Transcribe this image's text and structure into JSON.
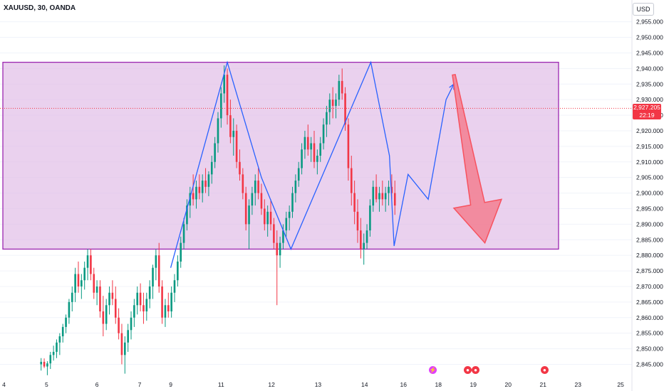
{
  "header": {
    "symbol_title": "XAUUSD, 30, OANDA",
    "currency": "USD"
  },
  "price_tag": {
    "price": "2,927.205",
    "countdown": "22:19",
    "color": "#f23645"
  },
  "colors": {
    "up": "#089981",
    "down": "#f23645",
    "zone_fill": "#e1bee7",
    "zone_border": "#9c27b0",
    "pattern": "#2962ff",
    "arrow": "#f7525f"
  },
  "events": [
    {
      "name": "flash-event-icon",
      "glyph": "⚡",
      "color": "#e040fb",
      "date_index": 55.8
    },
    {
      "name": "us-flag-event-icon",
      "glyph": "●",
      "color": "#f23645",
      "date_index": 60.3
    },
    {
      "name": "us-flag-event-icon",
      "glyph": "●",
      "color": "#f23645",
      "date_index": 61.3
    },
    {
      "name": "us-flag-event-icon",
      "glyph": "●",
      "color": "#f23645",
      "date_index": 70.2
    }
  ],
  "chart_data": {
    "type": "candlestick",
    "title": "XAUUSD, 30, OANDA",
    "ylabel": "USD",
    "ylim": [
      2841,
      2962
    ],
    "y_ticks": [
      "2,845.000",
      "2,850.000",
      "2,855.000",
      "2,860.000",
      "2,865.000",
      "2,870.000",
      "2,875.000",
      "2,880.000",
      "2,885.000",
      "2,890.000",
      "2,895.000",
      "2,900.000",
      "2,905.000",
      "2,910.000",
      "2,915.000",
      "2,920.000",
      "2,925.000",
      "2,930.000",
      "2,935.000",
      "2,940.000",
      "2,945.000",
      "2,950.000",
      "2,955.000"
    ],
    "y_tick_values": [
      2845,
      2850,
      2855,
      2860,
      2865,
      2870,
      2875,
      2880,
      2885,
      2890,
      2895,
      2900,
      2905,
      2910,
      2915,
      2920,
      2925,
      2930,
      2935,
      2940,
      2945,
      2950,
      2955
    ],
    "x_ticks": [
      "4",
      "5",
      "6",
      "7",
      "9",
      "11",
      "12",
      "13",
      "14",
      "16",
      "18",
      "19",
      "20",
      "21",
      "23",
      "25"
    ],
    "x_tick_index": [
      0.5,
      6,
      12.5,
      18,
      22,
      28.5,
      35,
      41,
      47,
      52,
      56.5,
      61,
      65.5,
      70,
      74.5,
      80
    ],
    "x_domain": [
      0,
      81
    ],
    "last_price": 2927.205,
    "zone": {
      "from_index": -1,
      "to_index": 72,
      "top": 2942,
      "bottom": 2882
    },
    "pattern_line": [
      [
        22,
        2876
      ],
      [
        29.3,
        2942
      ],
      [
        33.7,
        2905
      ],
      [
        37.5,
        2882
      ],
      [
        47.8,
        2942
      ],
      [
        50.2,
        2912
      ],
      [
        50.8,
        2883
      ],
      [
        52.6,
        2906
      ],
      [
        55.2,
        2898
      ],
      [
        57.5,
        2930
      ],
      [
        58.5,
        2935
      ]
    ],
    "projection_arrow": {
      "start": [
        58.5,
        2938
      ],
      "end": [
        62.5,
        2884
      ]
    },
    "candles": [
      [
        5.3,
        2845.0,
        2847.0,
        2843.0,
        2845.8
      ],
      [
        5.7,
        2845.8,
        2846.9,
        2843.8,
        2844.3
      ],
      [
        6.1,
        2844.3,
        2846.0,
        2841.5,
        2845.3
      ],
      [
        6.5,
        2845.3,
        2849.0,
        2843.5,
        2848.0
      ],
      [
        6.9,
        2848.0,
        2851.0,
        2846.2,
        2849.0
      ],
      [
        7.3,
        2849.0,
        2853.0,
        2847.0,
        2852.0
      ],
      [
        7.7,
        2852.0,
        2855.0,
        2848.0,
        2854.0
      ],
      [
        8.1,
        2854.0,
        2858.0,
        2852.0,
        2857.0
      ],
      [
        8.5,
        2857.0,
        2861.0,
        2855.0,
        2860.0
      ],
      [
        8.9,
        2860.0,
        2866.0,
        2858.0,
        2865.0
      ],
      [
        9.3,
        2865.0,
        2870.0,
        2862.0,
        2868.0
      ],
      [
        9.7,
        2868.0,
        2876.0,
        2865.0,
        2874.0
      ],
      [
        10.1,
        2874.0,
        2878.0,
        2868.0,
        2870.0
      ],
      [
        10.5,
        2870.0,
        2874.0,
        2866.0,
        2872.0
      ],
      [
        10.9,
        2872.0,
        2878.0,
        2869.0,
        2876.0
      ],
      [
        11.3,
        2876.0,
        2882.0,
        2872.0,
        2880.0
      ],
      [
        11.7,
        2880.0,
        2882.0,
        2872.0,
        2874.0
      ],
      [
        12.1,
        2874.0,
        2876.0,
        2866.0,
        2868.0
      ],
      [
        12.5,
        2868.0,
        2872.0,
        2864.0,
        2870.0
      ],
      [
        12.9,
        2870.0,
        2872.0,
        2860.0,
        2862.0
      ],
      [
        13.3,
        2862.0,
        2867.0,
        2854.0,
        2858.0
      ],
      [
        13.7,
        2858.0,
        2866.0,
        2856.0,
        2864.0
      ],
      [
        14.1,
        2864.0,
        2870.0,
        2861.0,
        2868.0
      ],
      [
        14.5,
        2868.0,
        2872.0,
        2864.0,
        2866.0
      ],
      [
        14.9,
        2866.0,
        2870.0,
        2858.0,
        2860.0
      ],
      [
        15.3,
        2860.0,
        2863.0,
        2853.0,
        2855.0
      ],
      [
        15.7,
        2855.0,
        2858.0,
        2845.0,
        2848.0
      ],
      [
        16.1,
        2848.0,
        2854.0,
        2842.0,
        2852.0
      ],
      [
        16.5,
        2852.0,
        2858.0,
        2849.0,
        2856.0
      ],
      [
        16.9,
        2856.0,
        2862.0,
        2853.0,
        2860.0
      ],
      [
        17.3,
        2860.0,
        2866.0,
        2857.0,
        2864.0
      ],
      [
        17.7,
        2864.0,
        2870.0,
        2861.0,
        2868.0
      ],
      [
        18.1,
        2868.0,
        2871.0,
        2862.0,
        2864.0
      ],
      [
        18.5,
        2864.0,
        2868.0,
        2858.0,
        2862.0
      ],
      [
        18.9,
        2862.0,
        2868.0,
        2859.0,
        2866.0
      ],
      [
        19.3,
        2866.0,
        2872.0,
        2863.0,
        2870.0
      ],
      [
        19.7,
        2870.0,
        2877.0,
        2866.0,
        2876.0
      ],
      [
        20.1,
        2876.0,
        2882.0,
        2872.0,
        2880.0
      ],
      [
        20.5,
        2880.0,
        2884.0,
        2868.0,
        2870.0
      ],
      [
        20.9,
        2870.0,
        2872.0,
        2858.0,
        2860.0
      ],
      [
        21.3,
        2860.0,
        2866.0,
        2857.0,
        2864.0
      ],
      [
        21.7,
        2864.0,
        2868.0,
        2860.0,
        2862.0
      ],
      [
        22.1,
        2862.0,
        2870.0,
        2860.0,
        2868.0
      ],
      [
        22.5,
        2868.0,
        2874.0,
        2865.0,
        2872.0
      ],
      [
        22.9,
        2872.0,
        2880.0,
        2870.0,
        2878.0
      ],
      [
        23.3,
        2878.0,
        2886.0,
        2876.0,
        2884.0
      ],
      [
        23.7,
        2884.0,
        2892.0,
        2882.0,
        2890.0
      ],
      [
        24.1,
        2890.0,
        2898.0,
        2888.0,
        2896.0
      ],
      [
        24.5,
        2896.0,
        2902.0,
        2892.0,
        2900.0
      ],
      [
        24.9,
        2900.0,
        2906.0,
        2896.0,
        2898.0
      ],
      [
        25.3,
        2898.0,
        2904.0,
        2895.0,
        2902.0
      ],
      [
        25.7,
        2902.0,
        2906.0,
        2898.0,
        2900.0
      ],
      [
        26.1,
        2900.0,
        2906.0,
        2897.0,
        2904.0
      ],
      [
        26.5,
        2904.0,
        2908.0,
        2900.0,
        2902.0
      ],
      [
        26.9,
        2902.0,
        2907.0,
        2899.0,
        2906.0
      ],
      [
        27.3,
        2906.0,
        2912.0,
        2903.0,
        2910.0
      ],
      [
        27.7,
        2910.0,
        2918.0,
        2908.0,
        2916.0
      ],
      [
        28.1,
        2916.0,
        2926.0,
        2913.0,
        2924.0
      ],
      [
        28.5,
        2924.0,
        2934.0,
        2921.0,
        2932.0
      ],
      [
        28.9,
        2932.0,
        2941.0,
        2929.0,
        2938.0
      ],
      [
        29.3,
        2938.0,
        2940.0,
        2922.0,
        2925.0
      ],
      [
        29.7,
        2925.0,
        2930.0,
        2916.0,
        2918.0
      ],
      [
        30.1,
        2918.0,
        2924.0,
        2912.0,
        2920.0
      ],
      [
        30.5,
        2920.0,
        2922.0,
        2908.0,
        2910.0
      ],
      [
        30.9,
        2910.0,
        2914.0,
        2904.0,
        2906.0
      ],
      [
        31.3,
        2906.0,
        2908.0,
        2898.0,
        2900.0
      ],
      [
        31.7,
        2900.0,
        2902.0,
        2888.0,
        2890.0
      ],
      [
        32.1,
        2890.0,
        2898.0,
        2882.0,
        2896.0
      ],
      [
        32.5,
        2896.0,
        2902.0,
        2893.0,
        2900.0
      ],
      [
        32.9,
        2900.0,
        2906.0,
        2896.0,
        2904.0
      ],
      [
        33.3,
        2904.0,
        2908.0,
        2898.0,
        2900.0
      ],
      [
        33.7,
        2900.0,
        2903.0,
        2893.0,
        2895.0
      ],
      [
        34.1,
        2895.0,
        2898.0,
        2888.0,
        2890.0
      ],
      [
        34.5,
        2890.0,
        2896.0,
        2886.0,
        2894.0
      ],
      [
        34.9,
        2894.0,
        2898.0,
        2888.0,
        2890.0
      ],
      [
        35.3,
        2890.0,
        2892.0,
        2882.0,
        2884.0
      ],
      [
        35.7,
        2884.0,
        2888.0,
        2864.0,
        2880.0
      ],
      [
        36.1,
        2880.0,
        2886.0,
        2876.0,
        2884.0
      ],
      [
        36.5,
        2884.0,
        2890.0,
        2882.0,
        2888.0
      ],
      [
        36.9,
        2888.0,
        2894.0,
        2886.0,
        2892.0
      ],
      [
        37.3,
        2892.0,
        2896.0,
        2888.0,
        2894.0
      ],
      [
        37.7,
        2894.0,
        2902.0,
        2892.0,
        2900.0
      ],
      [
        38.1,
        2900.0,
        2906.0,
        2897.0,
        2904.0
      ],
      [
        38.5,
        2904.0,
        2910.0,
        2902.0,
        2908.0
      ],
      [
        38.9,
        2908.0,
        2916.0,
        2906.0,
        2914.0
      ],
      [
        39.3,
        2914.0,
        2920.0,
        2911.0,
        2918.0
      ],
      [
        39.7,
        2918.0,
        2922.0,
        2912.0,
        2914.0
      ],
      [
        40.1,
        2914.0,
        2918.0,
        2910.0,
        2916.0
      ],
      [
        40.5,
        2916.0,
        2920.0,
        2908.0,
        2910.0
      ],
      [
        40.9,
        2910.0,
        2914.0,
        2906.0,
        2912.0
      ],
      [
        41.3,
        2912.0,
        2918.0,
        2910.0,
        2916.0
      ],
      [
        41.7,
        2916.0,
        2924.0,
        2914.0,
        2922.0
      ],
      [
        42.1,
        2922.0,
        2928.0,
        2918.0,
        2926.0
      ],
      [
        42.5,
        2926.0,
        2932.0,
        2922.0,
        2930.0
      ],
      [
        42.9,
        2930.0,
        2934.0,
        2924.0,
        2928.0
      ],
      [
        43.3,
        2928.0,
        2932.0,
        2924.0,
        2930.0
      ],
      [
        43.7,
        2930.0,
        2938.0,
        2928.0,
        2936.0
      ],
      [
        44.1,
        2936.0,
        2940.0,
        2930.0,
        2932.0
      ],
      [
        44.5,
        2932.0,
        2934.0,
        2920.0,
        2922.0
      ],
      [
        44.9,
        2922.0,
        2924.0,
        2904.0,
        2908.0
      ],
      [
        45.3,
        2908.0,
        2912.0,
        2896.0,
        2900.0
      ],
      [
        45.7,
        2900.0,
        2904.0,
        2890.0,
        2894.0
      ],
      [
        46.1,
        2894.0,
        2898.0,
        2884.0,
        2888.0
      ],
      [
        46.5,
        2888.0,
        2892.0,
        2879.0,
        2882.0
      ],
      [
        46.9,
        2882.0,
        2887.0,
        2877.0,
        2884.0
      ],
      [
        47.3,
        2884.0,
        2890.0,
        2882.0,
        2888.0
      ],
      [
        47.7,
        2888.0,
        2898.0,
        2886.0,
        2896.0
      ],
      [
        48.1,
        2896.0,
        2904.0,
        2894.0,
        2902.0
      ],
      [
        48.5,
        2902.0,
        2906.0,
        2897.0,
        2898.0
      ],
      [
        48.9,
        2898.0,
        2902.0,
        2894.0,
        2900.0
      ],
      [
        49.3,
        2900.0,
        2904.0,
        2896.0,
        2898.0
      ],
      [
        49.7,
        2898.0,
        2902.0,
        2894.0,
        2900.0
      ],
      [
        50.1,
        2900.0,
        2904.0,
        2896.0,
        2902.0
      ],
      [
        50.5,
        2902.0,
        2906.0,
        2898.0,
        2900.0
      ],
      [
        50.9,
        2900.0,
        2904.0,
        2893.0,
        2896.0
      ]
    ]
  }
}
